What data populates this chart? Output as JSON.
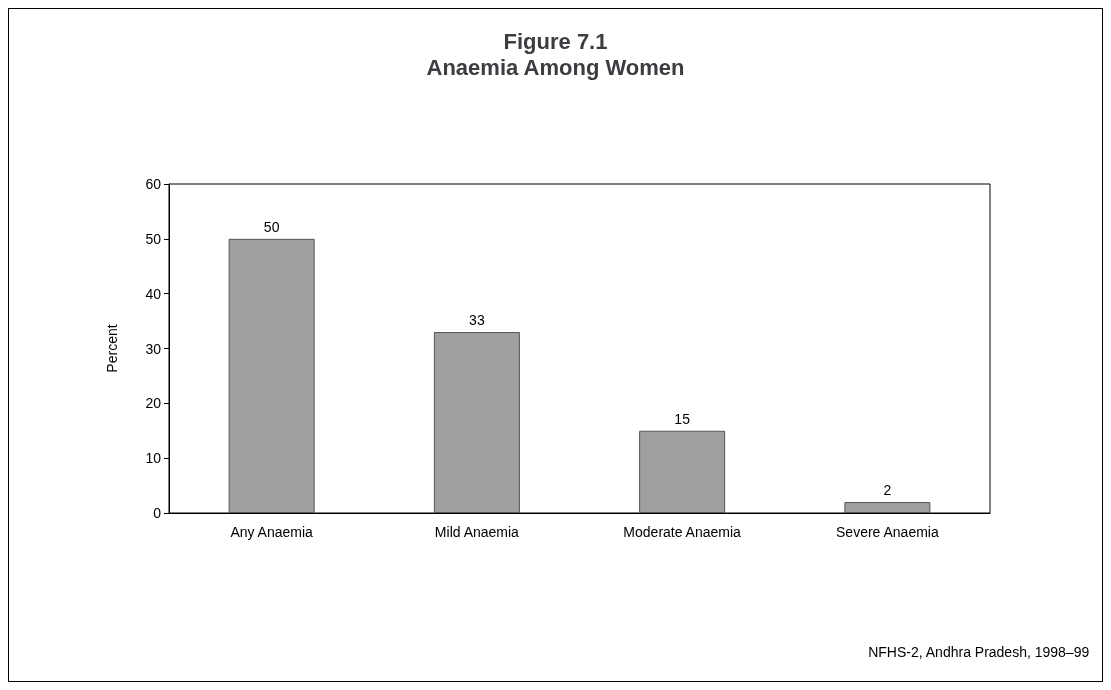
{
  "chart_data": {
    "type": "bar",
    "title": "Figure 7.1",
    "subtitle": "Anaemia Among Women",
    "ylabel": "Percent",
    "categories": [
      "Any Anaemia",
      "Mild Anaemia",
      "Moderate Anaemia",
      "Severe Anaemia"
    ],
    "values": [
      50,
      33,
      15,
      2
    ],
    "color": "#a0a0a0",
    "ylim": [
      0,
      60
    ],
    "yticks": [
      0,
      10,
      20,
      30,
      40,
      50,
      60
    ],
    "grid": false,
    "data_labels": true,
    "annotations": [
      "NFHS-2, Andhra Pradesh, 1998–99"
    ]
  }
}
